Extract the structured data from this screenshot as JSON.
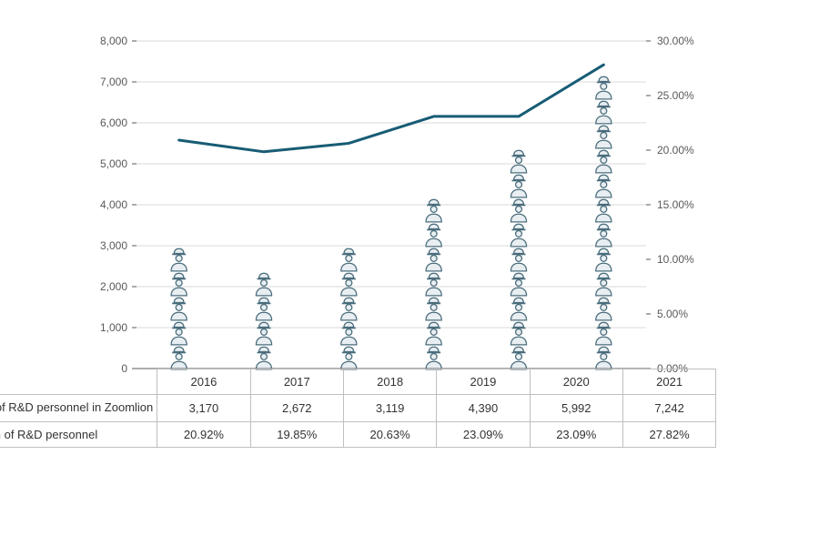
{
  "chart": {
    "type": "combo-pictogram-line",
    "years": [
      "2016",
      "2017",
      "2018",
      "2019",
      "2020",
      "2021"
    ],
    "personnel_values": [
      3170,
      2672,
      3119,
      4390,
      5992,
      7242
    ],
    "proportion_values": [
      20.92,
      19.85,
      20.63,
      23.09,
      23.09,
      27.82
    ],
    "proportion_labels": [
      "20.92%",
      "19.85%",
      "20.63%",
      "23.09%",
      "23.09%",
      "27.82%"
    ],
    "personnel_labels": [
      "3,170",
      "2,672",
      "3,119",
      "4,390",
      "5,992",
      "7,242"
    ],
    "y_left": {
      "min": 0,
      "max": 8000,
      "step": 1000,
      "ticks": [
        "0",
        "1,000",
        "2,000",
        "3,000",
        "4,000",
        "5,000",
        "6,000",
        "7,000",
        "8,000"
      ]
    },
    "y_right": {
      "min": 0,
      "max": 30,
      "step": 5,
      "ticks": [
        "0.00%",
        "5.00%",
        "10.00%",
        "15.00%",
        "20.00%",
        "25.00%",
        "30.00%"
      ]
    },
    "pictogram_unit": 600,
    "icon_color": "#4a6d7c",
    "icon_fill": "#e8eef1",
    "line_color": "#175c74",
    "line_width": 3,
    "grid_color": "#d9d9d9",
    "axis_text_color": "#595959",
    "table_border_color": "#bfbfbf",
    "background_color": "#ffffff",
    "axis_fontsize": 12,
    "table_fontsize": 13
  },
  "legend": {
    "personnel_label": "Number of R&D personnel in Zoomlion",
    "proportion_label": "Proportion of R&D personnel"
  }
}
